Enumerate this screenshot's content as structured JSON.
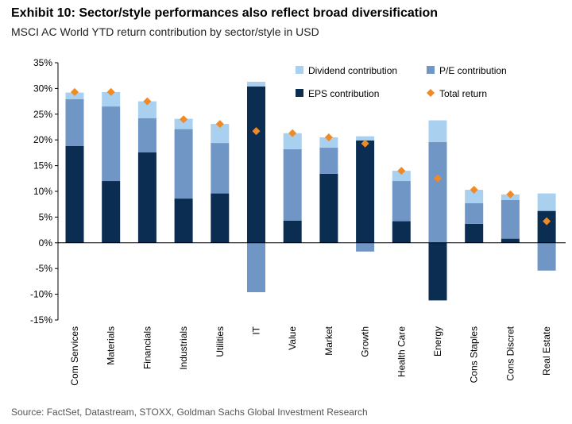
{
  "title": "Exhibit 10: Sector/style performances also reflect broad diversification",
  "subtitle": "MSCI AC World YTD return contribution by sector/style in USD",
  "source": "Source: FactSet, Datastream, STOXX, Goldman Sachs Global Investment Research",
  "chart_data": {
    "type": "bar",
    "stacked": true,
    "categories": [
      "Com Services",
      "Materials",
      "Financials",
      "Industrials",
      "Utilities",
      "IT",
      "Value",
      "Market",
      "Growth",
      "Health Care",
      "Energy",
      "Cons Staples",
      "Cons Discret",
      "Real Estate"
    ],
    "series": [
      {
        "name": "EPS contribution",
        "color": "#0b2d52",
        "values": [
          18.8,
          12.0,
          17.6,
          8.6,
          9.6,
          30.4,
          4.3,
          13.4,
          19.9,
          4.2,
          -11.2,
          3.7,
          0.8,
          6.2
        ]
      },
      {
        "name": "P/E contribution",
        "color": "#7096c6",
        "values": [
          9.1,
          14.5,
          6.6,
          13.5,
          9.8,
          -9.6,
          13.9,
          5.1,
          -1.7,
          7.8,
          19.6,
          4.0,
          7.5,
          -5.4
        ]
      },
      {
        "name": "Dividend contribution",
        "color": "#a9d0ee",
        "values": [
          1.3,
          2.8,
          3.3,
          2.0,
          3.7,
          0.9,
          3.1,
          2.0,
          0.8,
          2.0,
          4.2,
          2.6,
          1.1,
          3.4
        ]
      }
    ],
    "markers": {
      "name": "Total return",
      "color": "#f08a24",
      "values": [
        29.3,
        29.3,
        27.5,
        24.0,
        23.1,
        21.7,
        21.3,
        20.5,
        19.3,
        14.0,
        12.5,
        10.3,
        9.4,
        4.2
      ]
    },
    "legend_order": [
      "Dividend contribution",
      "P/E contribution",
      "EPS contribution",
      "Total return"
    ],
    "ylim": [
      -15,
      35
    ],
    "yticks": [
      -15,
      -10,
      -5,
      0,
      5,
      10,
      15,
      20,
      25,
      30,
      35
    ],
    "ytick_format": "%",
    "xlabel": "",
    "ylabel": "",
    "grid": false,
    "legend_position": "top-right"
  }
}
